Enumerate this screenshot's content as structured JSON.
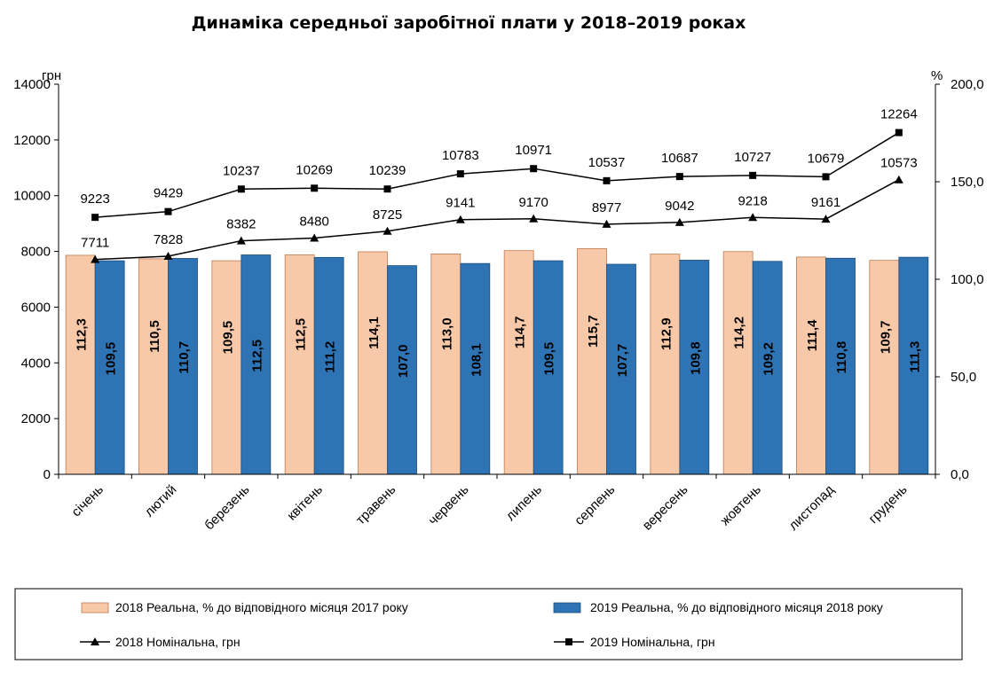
{
  "chart_data": {
    "type": "bar",
    "title": "Динаміка середньої заробітної плати у 2018–2019 роках",
    "y_left_unit": "грн",
    "y_right_unit": "%",
    "y_left_ticks": [
      "0",
      "2000",
      "4000",
      "6000",
      "8000",
      "10000",
      "12000",
      "14000"
    ],
    "y_right_ticks": [
      "0,0",
      "50,0",
      "100,0",
      "150,0",
      "200,0"
    ],
    "y_left_range": [
      0,
      14000
    ],
    "y_right_range": [
      0,
      200
    ],
    "grid": false,
    "legend_position": "bottom",
    "categories": [
      "січень",
      "лютий",
      "березень",
      "квітень",
      "травень",
      "червень",
      "липень",
      "серпень",
      "вересень",
      "жовтень",
      "листопад",
      "грудень"
    ],
    "series": [
      {
        "name": "2018 Реальна, % до відповідного місяця 2017 року",
        "type": "bar",
        "axis": "right",
        "color": "#F8C9A9",
        "values": [
          112.3,
          110.5,
          109.5,
          112.5,
          114.1,
          113.0,
          114.7,
          115.7,
          112.9,
          114.2,
          111.4,
          109.7
        ],
        "labels": [
          "112,3",
          "110,5",
          "109,5",
          "112,5",
          "114,1",
          "113,0",
          "114,7",
          "115,7",
          "112,9",
          "114,2",
          "111,4",
          "109,7"
        ]
      },
      {
        "name": "2019 Реальна, % до відповідного місяця 2018 року",
        "type": "bar",
        "axis": "right",
        "color": "#2E74B5",
        "values": [
          109.5,
          110.7,
          112.5,
          111.2,
          107.0,
          108.1,
          109.5,
          107.7,
          109.8,
          109.2,
          110.8,
          111.3
        ],
        "labels": [
          "109,5",
          "110,7",
          "112,5",
          "111,2",
          "107,0",
          "108,1",
          "109,5",
          "107,7",
          "109,8",
          "109,2",
          "110,8",
          "111,3"
        ]
      },
      {
        "name": "2018 Номінальна, грн",
        "type": "line",
        "axis": "left",
        "marker": "triangle",
        "values": [
          7711,
          7828,
          8382,
          8480,
          8725,
          9141,
          9170,
          8977,
          9042,
          9218,
          9161,
          10573
        ],
        "labels": [
          "7711",
          "7828",
          "8382",
          "8480",
          "8725",
          "9141",
          "9170",
          "8977",
          "9042",
          "9218",
          "9161",
          "10573"
        ]
      },
      {
        "name": "2019 Номінальна, грн",
        "type": "line",
        "axis": "left",
        "marker": "square",
        "values": [
          9223,
          9429,
          10237,
          10269,
          10239,
          10783,
          10971,
          10537,
          10687,
          10727,
          10679,
          12264
        ],
        "labels": [
          "9223",
          "9429",
          "10237",
          "10269",
          "10239",
          "10783",
          "10971",
          "10537",
          "10687",
          "10727",
          "10679",
          "12264"
        ]
      }
    ]
  }
}
